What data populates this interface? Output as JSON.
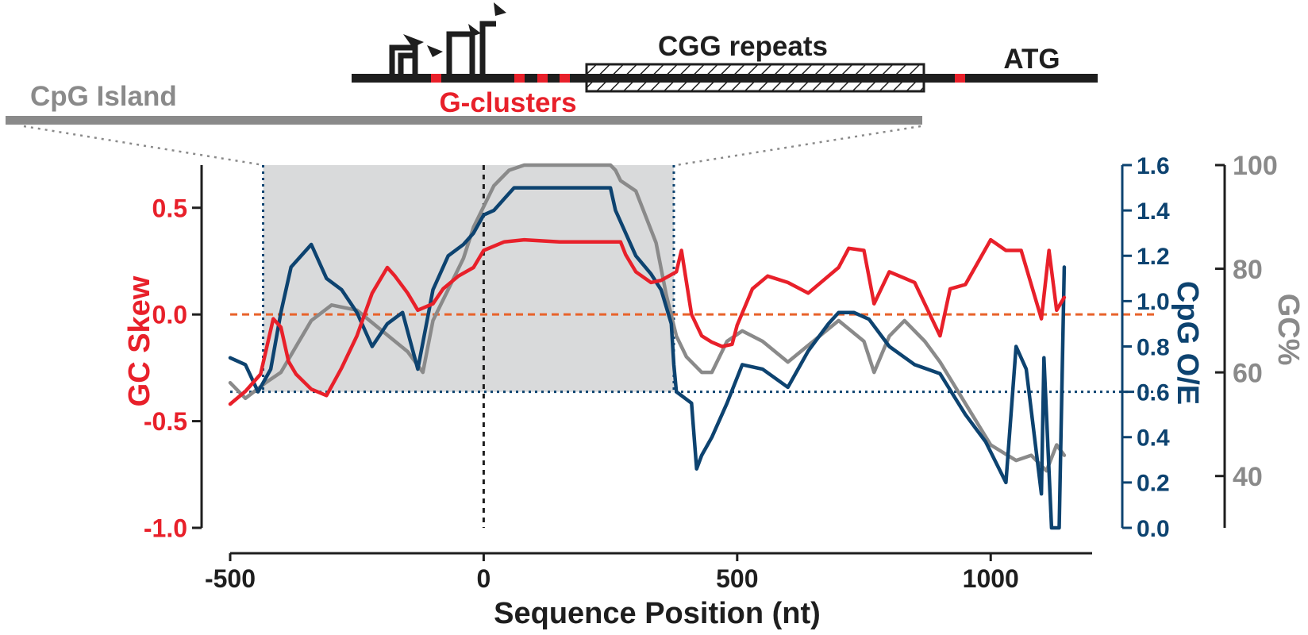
{
  "chart_data": {
    "type": "line",
    "xlabel": "Sequence Position (nt)",
    "xlim": [
      -500,
      1200
    ],
    "x_ticks": [
      -500,
      0,
      500,
      1000
    ],
    "cpg_island_range": [
      -435,
      375
    ],
    "threshold_x": 0,
    "axes": {
      "gc_skew": {
        "label": "GC Skew",
        "lim": [
          -1.0,
          0.7
        ],
        "ticks": [
          "0.5",
          "0.0",
          "-0.5",
          "-1.0"
        ],
        "tick_values": [
          0.5,
          0.0,
          -0.5,
          -1.0
        ],
        "color": "#e8202a"
      },
      "cpg_oe": {
        "label": "CpG O/E",
        "lim": [
          0.0,
          1.6
        ],
        "ticks": [
          "1.6",
          "1.4",
          "1.2",
          "1.0",
          "0.8",
          "0.6",
          "0.4",
          "0.2",
          "0.0"
        ],
        "tick_values": [
          1.6,
          1.4,
          1.2,
          1.0,
          0.8,
          0.6,
          0.4,
          0.2,
          0.0
        ],
        "color": "#0d4370"
      },
      "gc_pct": {
        "label": "GC%",
        "lim": [
          30,
          100
        ],
        "ticks": [
          "100",
          "80",
          "60",
          "40"
        ],
        "tick_values": [
          100,
          80,
          60,
          40
        ],
        "color": "#8a8a8a"
      }
    },
    "reference_lines": [
      {
        "axis": "gc_skew",
        "value": 0.0,
        "color": "#e8622a"
      },
      {
        "axis": "cpg_oe",
        "value": 0.6,
        "color": "#0d4370"
      }
    ],
    "series": [
      {
        "name": "GC Skew",
        "axis": "gc_skew",
        "color": "#e8202a",
        "x": [
          -500,
          -470,
          -440,
          -415,
          -400,
          -385,
          -370,
          -340,
          -310,
          -280,
          -250,
          -220,
          -190,
          -175,
          -150,
          -130,
          -100,
          -80,
          -50,
          -20,
          0,
          40,
          80,
          150,
          200,
          270,
          280,
          300,
          330,
          350,
          380,
          390,
          410,
          430,
          450,
          470,
          490,
          500,
          530,
          560,
          600,
          640,
          700,
          720,
          750,
          770,
          800,
          850,
          900,
          920,
          950,
          1000,
          1030,
          1060,
          1100,
          1115,
          1130,
          1145
        ],
        "values": [
          -0.42,
          -0.36,
          -0.28,
          -0.02,
          -0.06,
          -0.22,
          -0.28,
          -0.35,
          -0.38,
          -0.25,
          -0.1,
          0.1,
          0.22,
          0.18,
          0.1,
          0.02,
          0.05,
          0.12,
          0.18,
          0.22,
          0.3,
          0.34,
          0.35,
          0.34,
          0.34,
          0.34,
          0.28,
          0.2,
          0.15,
          0.16,
          0.2,
          0.3,
          0.0,
          -0.1,
          -0.13,
          -0.15,
          -0.14,
          -0.05,
          0.12,
          0.18,
          0.15,
          0.1,
          0.22,
          0.31,
          0.3,
          0.05,
          0.2,
          0.15,
          -0.1,
          0.12,
          0.14,
          0.35,
          0.3,
          0.3,
          -0.02,
          0.3,
          0.02,
          0.08
        ]
      },
      {
        "name": "CpG O/E",
        "axis": "cpg_oe",
        "color": "#0d4370",
        "x": [
          -500,
          -470,
          -445,
          -420,
          -400,
          -380,
          -340,
          -310,
          -280,
          -250,
          -220,
          -190,
          -160,
          -130,
          -100,
          -70,
          -40,
          -20,
          0,
          20,
          40,
          60,
          100,
          150,
          200,
          250,
          260,
          280,
          300,
          330,
          350,
          370,
          375,
          380,
          410,
          420,
          430,
          450,
          480,
          510,
          550,
          600,
          640,
          680,
          700,
          730,
          760,
          800,
          850,
          900,
          950,
          990,
          1030,
          1050,
          1070,
          1100,
          1105,
          1120,
          1135,
          1145
        ],
        "values": [
          0.75,
          0.72,
          0.6,
          0.7,
          0.95,
          1.15,
          1.25,
          1.1,
          1.05,
          0.95,
          0.8,
          0.9,
          0.95,
          0.7,
          1.05,
          1.2,
          1.25,
          1.3,
          1.38,
          1.4,
          1.45,
          1.5,
          1.5,
          1.5,
          1.5,
          1.5,
          1.4,
          1.3,
          1.2,
          1.12,
          1.05,
          0.9,
          0.72,
          0.6,
          0.55,
          0.26,
          0.32,
          0.4,
          0.55,
          0.72,
          0.7,
          0.62,
          0.78,
          0.9,
          0.95,
          0.95,
          0.92,
          0.8,
          0.72,
          0.68,
          0.5,
          0.38,
          0.2,
          0.8,
          0.7,
          0.15,
          0.75,
          0.0,
          0.0,
          1.15
        ]
      },
      {
        "name": "GC%",
        "axis": "gc_pct",
        "color": "#8a8a8a",
        "x": [
          -500,
          -470,
          -430,
          -400,
          -370,
          -340,
          -300,
          -250,
          -200,
          -150,
          -120,
          -100,
          -80,
          -60,
          -40,
          -20,
          0,
          20,
          50,
          80,
          100,
          250,
          260,
          270,
          300,
          340,
          360,
          380,
          400,
          430,
          450,
          480,
          510,
          550,
          600,
          650,
          700,
          750,
          770,
          800,
          830,
          870,
          900,
          950,
          1000,
          1050,
          1080,
          1110,
          1130,
          1145
        ],
        "values": [
          58,
          55,
          58,
          60,
          65,
          70,
          73,
          72,
          68,
          64,
          60,
          70,
          74,
          78,
          82,
          88,
          92,
          96,
          99,
          100,
          100,
          100,
          99,
          97,
          95,
          85,
          75,
          67,
          63,
          60,
          60,
          66,
          68,
          66,
          62,
          66,
          70,
          66,
          60,
          67,
          70,
          66,
          62,
          54,
          46,
          43,
          44,
          41,
          46,
          44
        ]
      }
    ]
  },
  "gene_diagram": {
    "cgg_label": "CGG repeats",
    "atg_label": "ATG",
    "gclusters_label": "G-clusters",
    "cpg_island_label": "CpG Island"
  }
}
